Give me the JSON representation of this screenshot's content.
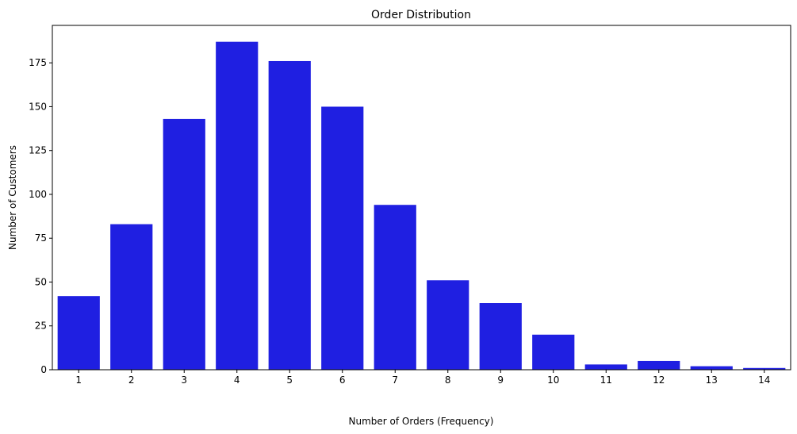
{
  "chart_data": {
    "type": "bar",
    "title": "Order Distribution",
    "xlabel": "Number of Orders (Frequency)",
    "ylabel": "Number of Customers",
    "categories": [
      "1",
      "2",
      "3",
      "4",
      "5",
      "6",
      "7",
      "8",
      "9",
      "10",
      "11",
      "12",
      "13",
      "14"
    ],
    "values": [
      42,
      83,
      143,
      187,
      176,
      150,
      94,
      51,
      38,
      20,
      3,
      5,
      2,
      1
    ],
    "yticks": [
      0,
      25,
      50,
      75,
      100,
      125,
      150,
      175
    ],
    "ylim": [
      0,
      196.35
    ],
    "grid": false,
    "bar_color": "#1f1fe1"
  }
}
